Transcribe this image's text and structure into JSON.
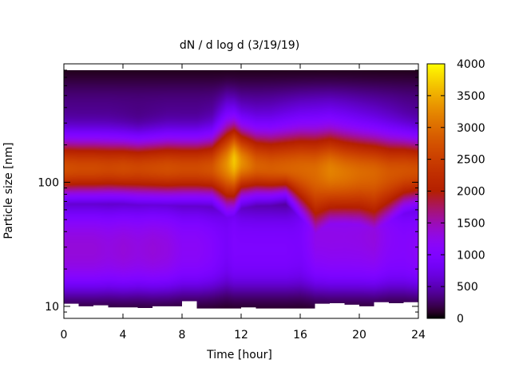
{
  "chart_data": {
    "type": "heatmap",
    "title": "dN / d log d (3/19/19)",
    "xlabel": "Time [hour]",
    "ylabel": "Particle size [nm]",
    "xlim": [
      0,
      24
    ],
    "ylim": [
      8,
      900
    ],
    "y_scale": "log",
    "x_ticks": [
      0,
      4,
      8,
      12,
      16,
      20,
      24
    ],
    "y_ticks": [
      10,
      100
    ],
    "colorbar": {
      "range": [
        0,
        4000
      ],
      "ticks": [
        0,
        500,
        1000,
        1500,
        2000,
        2500,
        3000,
        3500,
        4000
      ],
      "palette": "gnuplot-pm3d"
    },
    "grid": false,
    "x": [
      0,
      1,
      2,
      3,
      4,
      5,
      6,
      7,
      8,
      9,
      10,
      11,
      11.5,
      12,
      13,
      14,
      15,
      16,
      17,
      18,
      19,
      20,
      21,
      22,
      23,
      24
    ],
    "size_nm": [
      9,
      10,
      12,
      15,
      20,
      30,
      40,
      50,
      60,
      70,
      85,
      100,
      120,
      150,
      180,
      220,
      270,
      330,
      400,
      500,
      650,
      850
    ],
    "mode_diameter_nm": [
      130,
      130,
      130,
      130,
      130,
      130,
      130,
      130,
      130,
      130,
      130,
      140,
      150,
      145,
      135,
      130,
      130,
      130,
      125,
      125,
      120,
      120,
      120,
      120,
      125,
      125
    ],
    "peak_concentration": [
      2700,
      2650,
      2650,
      2600,
      2650,
      2600,
      2650,
      2700,
      2650,
      2650,
      2750,
      3300,
      3700,
      3300,
      2900,
      2850,
      2900,
      2950,
      3000,
      3200,
      3100,
      3000,
      2950,
      2800,
      2750,
      2700
    ],
    "lower_edge_nm": [
      70,
      70,
      70,
      70,
      70,
      68,
      68,
      68,
      68,
      68,
      68,
      55,
      58,
      70,
      72,
      72,
      75,
      50,
      30,
      40,
      40,
      38,
      32,
      42,
      55,
      60
    ],
    "upper_edge_nm": [
      260,
      260,
      260,
      260,
      255,
      250,
      255,
      260,
      260,
      260,
      270,
      330,
      330,
      310,
      300,
      300,
      310,
      320,
      320,
      320,
      310,
      300,
      290,
      280,
      270,
      260
    ],
    "fine_particle_level": [
      1400,
      1400,
      1400,
      1350,
      1400,
      1350,
      1400,
      1350,
      1200,
      1200,
      1100,
      900,
      1000,
      1000,
      1000,
      1000,
      1000,
      950,
      1100,
      1200,
      1200,
      1200,
      1200,
      1100,
      1100,
      1200
    ],
    "min_detected_size_nm": [
      10.5,
      10.0,
      10.2,
      9.8,
      9.8,
      9.7,
      10.0,
      10.0,
      11.0,
      9.6,
      9.6,
      9.6,
      9.6,
      9.8,
      9.6,
      9.6,
      9.6,
      9.6,
      10.5,
      10.6,
      10.3,
      10.0,
      10.8,
      10.6,
      10.8,
      9.6
    ]
  }
}
